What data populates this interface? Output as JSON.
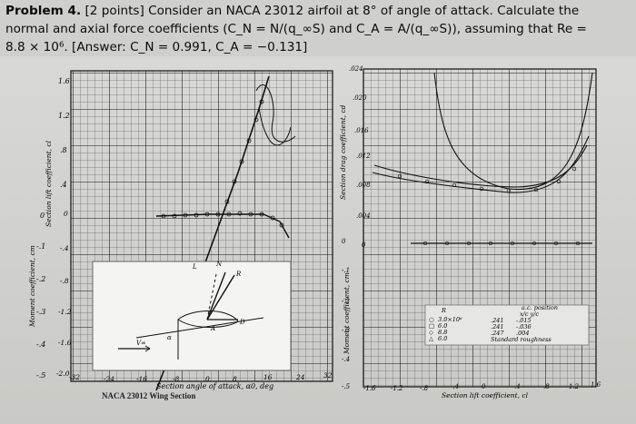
{
  "problem": {
    "label": "Problem 4.",
    "points": "[2 points]",
    "line1_rest": "Consider an NACA 23012 airfoil at 8° of angle of attack. Calculate the",
    "line2": "normal and axial force coefficients (C_N = N/(q_∞S) and C_A = A/(q_∞S)), assuming that Re =",
    "line3": "8.8 × 10⁶. [Answer: C_N = 0.991, C_A = −0.131]"
  },
  "left_chart": {
    "ylabel_lift": "Section lift coefficient, cl",
    "ylabel_moment": "Moment coefficient, cm",
    "xlabel": "Section angle of attack, α0, deg",
    "caption": "NACA 23012 Wing Section",
    "y_outer_ticks": [
      "1.6",
      "1.2",
      ".8",
      ".4",
      "0",
      "-.1",
      "-.2",
      "-.3",
      "-.4",
      "-.5"
    ],
    "y_inner_ticks": [
      "0",
      "-.4",
      "-.8",
      "-1.2",
      "-1.6",
      "-2.0"
    ],
    "x_ticks": [
      "-32",
      "-24",
      "-16",
      "-8",
      "0",
      "8",
      "16",
      "24",
      "32"
    ],
    "inset_labels": {
      "L": "L",
      "N": "N",
      "R": "R",
      "D": "D",
      "A": "A",
      "Vinf": "V∞",
      "alpha": "α"
    }
  },
  "right_chart": {
    "ylabel_drag": "Section drag coefficient, cd",
    "ylabel_moment": "Moment coefficient, cm",
    "xlabel": "Section lift coefficient, cl",
    "y_drag_ticks": [
      ".024",
      ".020",
      ".016",
      ".012",
      ".008",
      ".004",
      "0"
    ],
    "y_moment_ticks": [
      "0",
      "-.1",
      "-.2",
      "-.3",
      "-.4",
      "-.5"
    ],
    "x_ticks": [
      "-1.6",
      "-1.2",
      "-.8",
      "-.4",
      "0",
      ".4",
      ".8",
      "1.2",
      "1.6"
    ],
    "legend": {
      "header_left": "R",
      "header_right": "a.c. position",
      "header_xy": "x/c   y/c",
      "rows": [
        {
          "symbol": "○",
          "re": "3.0×10⁶",
          "x": ".241",
          "y": "-.015"
        },
        {
          "symbol": "□",
          "re": "6.0",
          "x": ".241",
          "y": "-.036"
        },
        {
          "symbol": "◇",
          "re": "8.8",
          "x": ".247",
          "y": ".004"
        },
        {
          "symbol": "△",
          "re": "6.0",
          "x": "",
          "y": ""
        }
      ],
      "note": "Standard roughness"
    }
  },
  "colors": {
    "grid": "#2a2a2a",
    "curve": "#1a1a1a",
    "background": "#d3d4d0"
  }
}
